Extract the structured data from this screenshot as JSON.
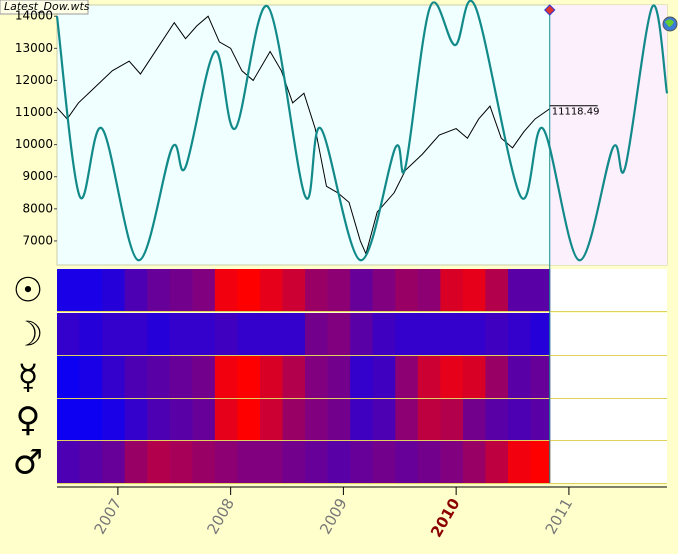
{
  "file_name": "Latest_Dow.wts",
  "chart_data": [
    {
      "type": "line",
      "xlim": [
        2006.46,
        2011.87
      ],
      "xticks": [
        2007,
        2008,
        2009,
        2010,
        2011
      ],
      "highlight_xtick": 2010,
      "ylim": [
        6250,
        14350
      ],
      "yticks": [
        7000,
        8000,
        9000,
        10000,
        11000,
        12000,
        13000,
        14000
      ],
      "series": [
        {
          "color": "#000000",
          "x": [
            2006.46,
            2006.55,
            2006.65,
            2006.8,
            2006.95,
            2007.1,
            2007.2,
            2007.35,
            2007.5,
            2007.6,
            2007.7,
            2007.8,
            2007.9,
            2008.0,
            2008.1,
            2008.2,
            2008.35,
            2008.45,
            2008.55,
            2008.65,
            2008.75,
            2008.85,
            2008.95,
            2009.05,
            2009.15,
            2009.2,
            2009.3,
            2009.45,
            2009.55,
            2009.7,
            2009.85,
            2010.0,
            2010.1,
            2010.2,
            2010.3,
            2010.4,
            2010.5,
            2010.6,
            2010.7,
            2010.83
          ],
          "values": [
            11150,
            10800,
            11300,
            11800,
            12300,
            12600,
            12200,
            13000,
            13800,
            13300,
            13700,
            14000,
            13200,
            13000,
            12300,
            12000,
            12900,
            12300,
            11300,
            11600,
            10500,
            8700,
            8500,
            8200,
            7000,
            6600,
            7900,
            8500,
            9200,
            9700,
            10300,
            10500,
            10200,
            10800,
            11200,
            10200,
            9900,
            10400,
            10800,
            11118.49
          ]
        },
        {
          "color": "#138a8a",
          "x": [
            2006.46,
            2006.66,
            2006.86,
            2007.18,
            2007.48,
            2007.6,
            2007.86,
            2008.04,
            2008.33,
            2008.66,
            2008.8,
            2009.15,
            2009.46,
            2009.55,
            2009.77,
            2009.99,
            2010.17,
            2010.57,
            2010.77,
            2011.09,
            2011.39,
            2011.5,
            2011.74,
            2011.87
          ],
          "values": [
            14000,
            8400,
            10500,
            6400,
            9900,
            9300,
            12900,
            10500,
            14300,
            8400,
            10500,
            6400,
            9900,
            9300,
            14300,
            13100,
            14300,
            8400,
            10500,
            6400,
            9900,
            9300,
            14300,
            11600
          ]
        }
      ],
      "last_value": 11118.49,
      "future_start": 2010.83
    },
    {
      "type": "heatmap",
      "colormap": [
        "#0000ff",
        "#ff0000"
      ],
      "bins": [
        2006.46,
        2006.66,
        2006.86,
        2007.06,
        2007.26,
        2007.46,
        2007.66,
        2007.86,
        2008.06,
        2008.26,
        2008.46,
        2008.66,
        2008.86,
        2009.06,
        2009.26,
        2009.46,
        2009.66,
        2009.86,
        2010.06,
        2010.26,
        2010.46,
        2010.66,
        2010.83
      ],
      "rows": [
        {
          "label": "☉",
          "values": [
            0.1,
            0.1,
            0.15,
            0.3,
            0.4,
            0.45,
            0.5,
            0.95,
            1,
            0.9,
            0.8,
            0.6,
            0.55,
            0.4,
            0.5,
            0.6,
            0.55,
            0.85,
            0.9,
            0.7,
            0.35,
            0.35
          ]
        },
        {
          "label": "☽",
          "values": [
            0.2,
            0.15,
            0.2,
            0.2,
            0.15,
            0.2,
            0.2,
            0.25,
            0.2,
            0.2,
            0.2,
            0.45,
            0.5,
            0.35,
            0.25,
            0.2,
            0.2,
            0.2,
            0.2,
            0.25,
            0.2,
            0.15
          ]
        },
        {
          "label": "☿",
          "values": [
            0.05,
            0.1,
            0.2,
            0.3,
            0.35,
            0.4,
            0.45,
            0.95,
            1,
            0.85,
            0.7,
            0.5,
            0.45,
            0.2,
            0.25,
            0.55,
            0.8,
            0.9,
            0.85,
            0.6,
            0.35,
            0.4
          ]
        },
        {
          "label": "♀",
          "values": [
            0.05,
            0.05,
            0.1,
            0.2,
            0.3,
            0.35,
            0.4,
            0.9,
            1,
            0.8,
            0.6,
            0.5,
            0.45,
            0.25,
            0.3,
            0.55,
            0.75,
            0.7,
            0.45,
            0.35,
            0.3,
            0.35
          ]
        },
        {
          "label": "♂",
          "values": [
            0.3,
            0.35,
            0.4,
            0.6,
            0.7,
            0.65,
            0.6,
            0.55,
            0.5,
            0.5,
            0.45,
            0.4,
            0.35,
            0.4,
            0.45,
            0.4,
            0.45,
            0.5,
            0.6,
            0.75,
            0.95,
            1
          ]
        }
      ]
    }
  ]
}
